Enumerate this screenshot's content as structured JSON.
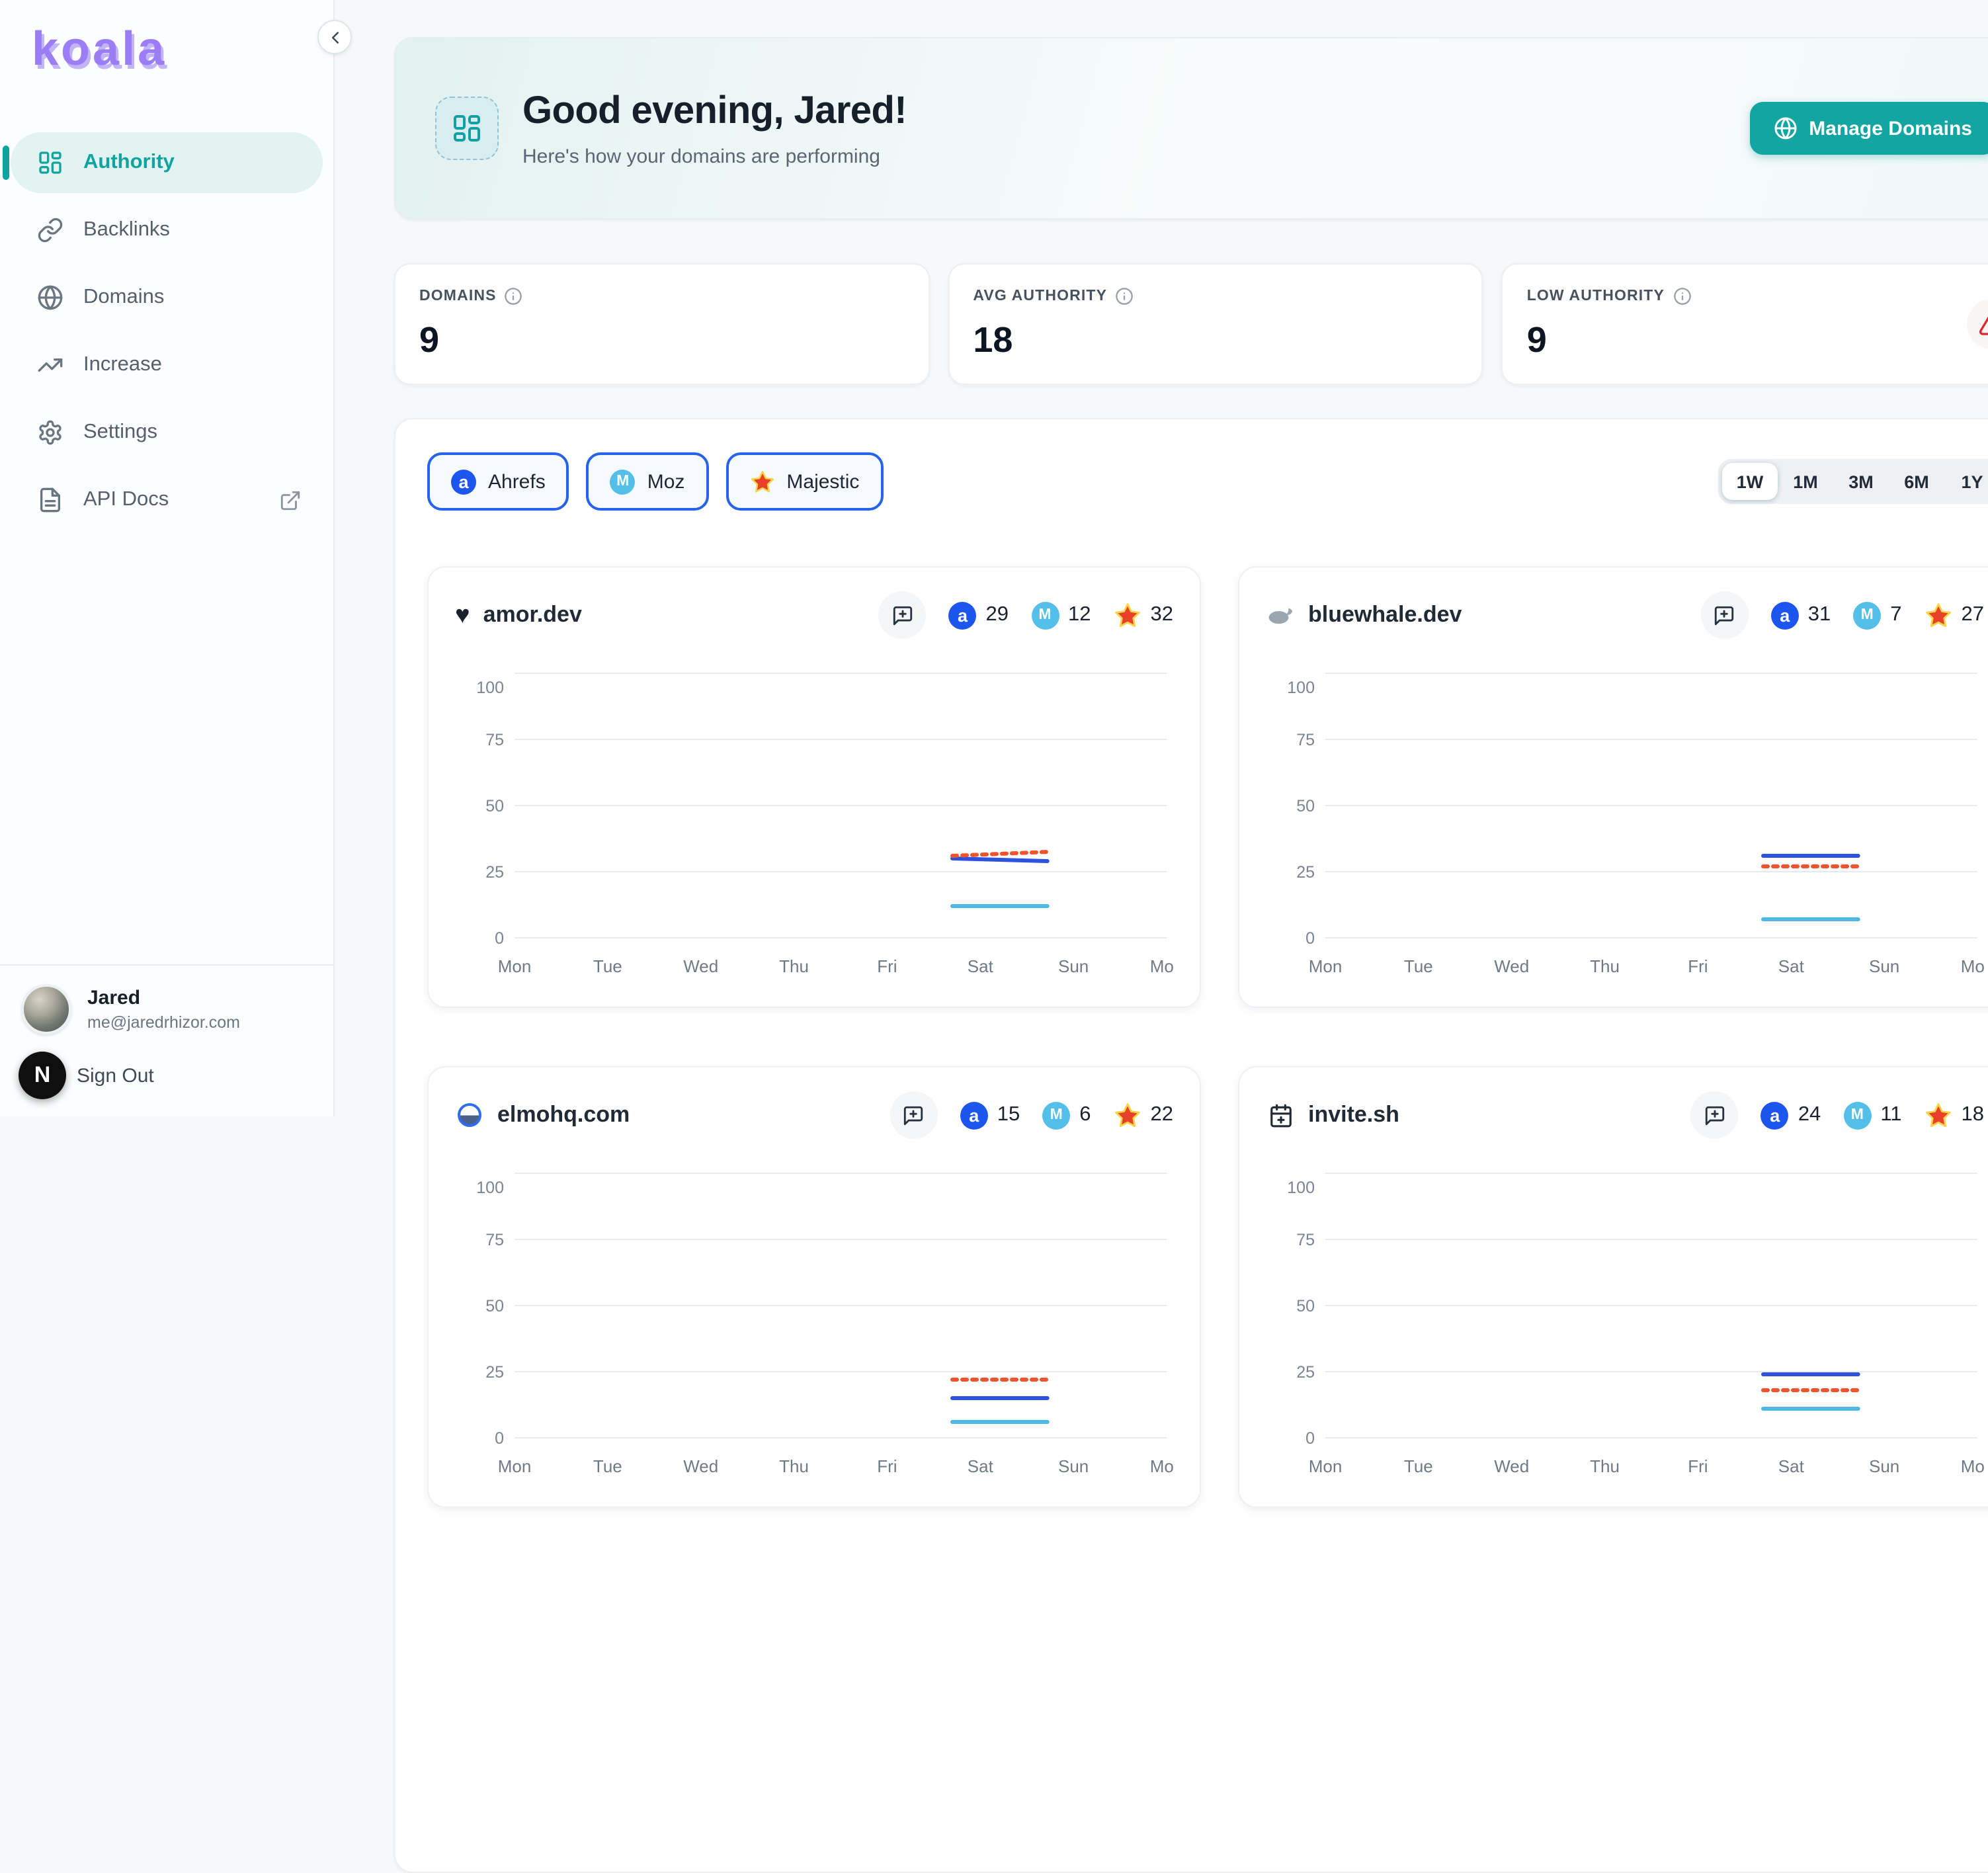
{
  "app": {
    "logo": "koala"
  },
  "colors": {
    "accent": "#12a5a2",
    "logo_purple": "#9b7ef6",
    "ahrefs_blue": "#1d55ef",
    "ahrefs_line": "#2d53de",
    "moz_blue": "#54bfe9",
    "moz_line": "#4cb8e3",
    "majestic_red": "#e8402a",
    "majestic_line": "#f0542d",
    "warning_red": "#d92b2b",
    "chip_border": "#2563eb"
  },
  "sidebar": {
    "nav": [
      {
        "label": "Authority",
        "icon": "grid",
        "active": true
      },
      {
        "label": "Backlinks",
        "icon": "link"
      },
      {
        "label": "Domains",
        "icon": "globe"
      },
      {
        "label": "Increase",
        "icon": "trend"
      },
      {
        "label": "Settings",
        "icon": "gear"
      },
      {
        "label": "API Docs",
        "icon": "doc",
        "external": true
      }
    ],
    "user": {
      "name": "Jared",
      "email": "me@jaredrhizor.com",
      "sign_out": "Sign Out",
      "overlay_badge": "N"
    }
  },
  "header": {
    "greeting": "Good evening, Jared!",
    "subtitle": "Here's how your domains are performing",
    "manage_button": "Manage Domains"
  },
  "stats": [
    {
      "label": "DOMAINS",
      "value": "9"
    },
    {
      "label": "AVG AUTHORITY",
      "value": "18"
    },
    {
      "label": "LOW AUTHORITY",
      "value": "9",
      "warning": true
    }
  ],
  "filters": {
    "providers": [
      {
        "label": "Ahrefs",
        "icon": "ahrefs"
      },
      {
        "label": "Moz",
        "icon": "moz"
      },
      {
        "label": "Majestic",
        "icon": "majestic"
      }
    ],
    "ranges": [
      "1W",
      "1M",
      "3M",
      "6M",
      "1Y"
    ],
    "active_range": "1W"
  },
  "domains": [
    {
      "name": "amor.dev",
      "icon": "heart",
      "scores": {
        "ahrefs": "29",
        "moz": "12",
        "majestic": "32"
      }
    },
    {
      "name": "bluewhale.dev",
      "icon": "whale",
      "scores": {
        "ahrefs": "31",
        "moz": "7",
        "majestic": "27"
      }
    },
    {
      "name": "elmohq.com",
      "icon": "elmo",
      "scores": {
        "ahrefs": "15",
        "moz": "6",
        "majestic": "22"
      }
    },
    {
      "name": "invite.sh",
      "icon": "calendar",
      "scores": {
        "ahrefs": "24",
        "moz": "11",
        "majestic": "18"
      }
    }
  ],
  "chart_data": [
    {
      "type": "line",
      "domain": "amor.dev",
      "x_labels": [
        "Mon",
        "Tue",
        "Wed",
        "Thu",
        "Fri",
        "Sat",
        "Sun",
        "Mon"
      ],
      "yticks": [
        0,
        25,
        50,
        75,
        100
      ],
      "ylim": [
        0,
        100
      ],
      "grid": true,
      "legend": "none",
      "segment_ticks": [
        4.7,
        5.72
      ],
      "series": [
        {
          "name": "Ahrefs",
          "color": "#2d53de",
          "values": [
            30,
            29
          ]
        },
        {
          "name": "Moz",
          "color": "#4cb8e3",
          "values": [
            12,
            12
          ]
        },
        {
          "name": "Majestic",
          "color": "#f0542d",
          "dashed": true,
          "values": [
            31,
            32.5
          ]
        }
      ]
    },
    {
      "type": "line",
      "domain": "bluewhale.dev",
      "x_labels": [
        "Mon",
        "Tue",
        "Wed",
        "Thu",
        "Fri",
        "Sat",
        "Sun",
        "Mon"
      ],
      "yticks": [
        0,
        25,
        50,
        75,
        100
      ],
      "ylim": [
        0,
        100
      ],
      "grid": true,
      "legend": "none",
      "segment_ticks": [
        4.7,
        5.72
      ],
      "series": [
        {
          "name": "Ahrefs",
          "color": "#2d53de",
          "values": [
            31,
            31
          ]
        },
        {
          "name": "Moz",
          "color": "#4cb8e3",
          "values": [
            7,
            7
          ]
        },
        {
          "name": "Majestic",
          "color": "#f0542d",
          "dashed": true,
          "values": [
            27,
            27
          ]
        }
      ]
    },
    {
      "type": "line",
      "domain": "elmohq.com",
      "x_labels": [
        "Mon",
        "Tue",
        "Wed",
        "Thu",
        "Fri",
        "Sat",
        "Sun",
        "Mon"
      ],
      "yticks": [
        0,
        25,
        50,
        75,
        100
      ],
      "ylim": [
        0,
        100
      ],
      "grid": true,
      "legend": "none",
      "segment_ticks": [
        4.7,
        5.72
      ],
      "series": [
        {
          "name": "Ahrefs",
          "color": "#2d53de",
          "values": [
            15,
            15
          ]
        },
        {
          "name": "Moz",
          "color": "#4cb8e3",
          "values": [
            6,
            6
          ]
        },
        {
          "name": "Majestic",
          "color": "#f0542d",
          "dashed": true,
          "values": [
            22,
            22
          ]
        }
      ]
    },
    {
      "type": "line",
      "domain": "invite.sh",
      "x_labels": [
        "Mon",
        "Tue",
        "Wed",
        "Thu",
        "Fri",
        "Sat",
        "Sun",
        "Mon"
      ],
      "yticks": [
        0,
        25,
        50,
        75,
        100
      ],
      "ylim": [
        0,
        100
      ],
      "grid": true,
      "legend": "none",
      "segment_ticks": [
        4.7,
        5.72
      ],
      "series": [
        {
          "name": "Ahrefs",
          "color": "#2d53de",
          "values": [
            24,
            24
          ]
        },
        {
          "name": "Moz",
          "color": "#4cb8e3",
          "values": [
            11,
            11
          ]
        },
        {
          "name": "Majestic",
          "color": "#f0542d",
          "dashed": true,
          "values": [
            18,
            18
          ]
        }
      ]
    }
  ]
}
